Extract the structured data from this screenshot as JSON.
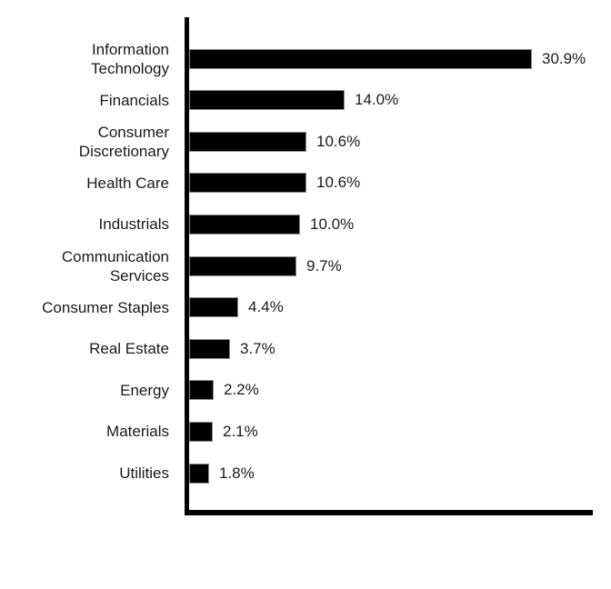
{
  "page": {
    "background_color": "#ffffff",
    "title": ""
  },
  "chart_data": {
    "type": "bar",
    "orientation": "horizontal",
    "title": "",
    "xlabel": "",
    "ylabel": "",
    "grid": false,
    "legend": false,
    "xlim": [
      0,
      36.6
    ],
    "bar_color": "#000000",
    "axis_color": "#000000",
    "text_color": "#1a1a1a",
    "categories": [
      "Information Technology",
      "Financials",
      "Consumer Discretionary",
      "Health Care",
      "Industrials",
      "Communication Services",
      "Consumer Staples",
      "Real Estate",
      "Energy",
      "Materials",
      "Utilities"
    ],
    "category_lines": [
      [
        "Information",
        "Technology"
      ],
      [
        "Financials"
      ],
      [
        "Consumer",
        "Discretionary"
      ],
      [
        "Health Care"
      ],
      [
        "Industrials"
      ],
      [
        "Communication",
        "Services"
      ],
      [
        "Consumer Staples"
      ],
      [
        "Real Estate"
      ],
      [
        "Energy"
      ],
      [
        "Materials"
      ],
      [
        "Utilities"
      ]
    ],
    "values": [
      30.9,
      14.0,
      10.6,
      10.6,
      10.0,
      9.7,
      4.4,
      3.7,
      2.2,
      2.1,
      1.8
    ],
    "value_labels": [
      "30.9%",
      "14.0%",
      "10.6%",
      "10.6%",
      "10.0%",
      "9.7%",
      "4.4%",
      "3.7%",
      "2.2%",
      "2.1%",
      "1.8%"
    ]
  }
}
